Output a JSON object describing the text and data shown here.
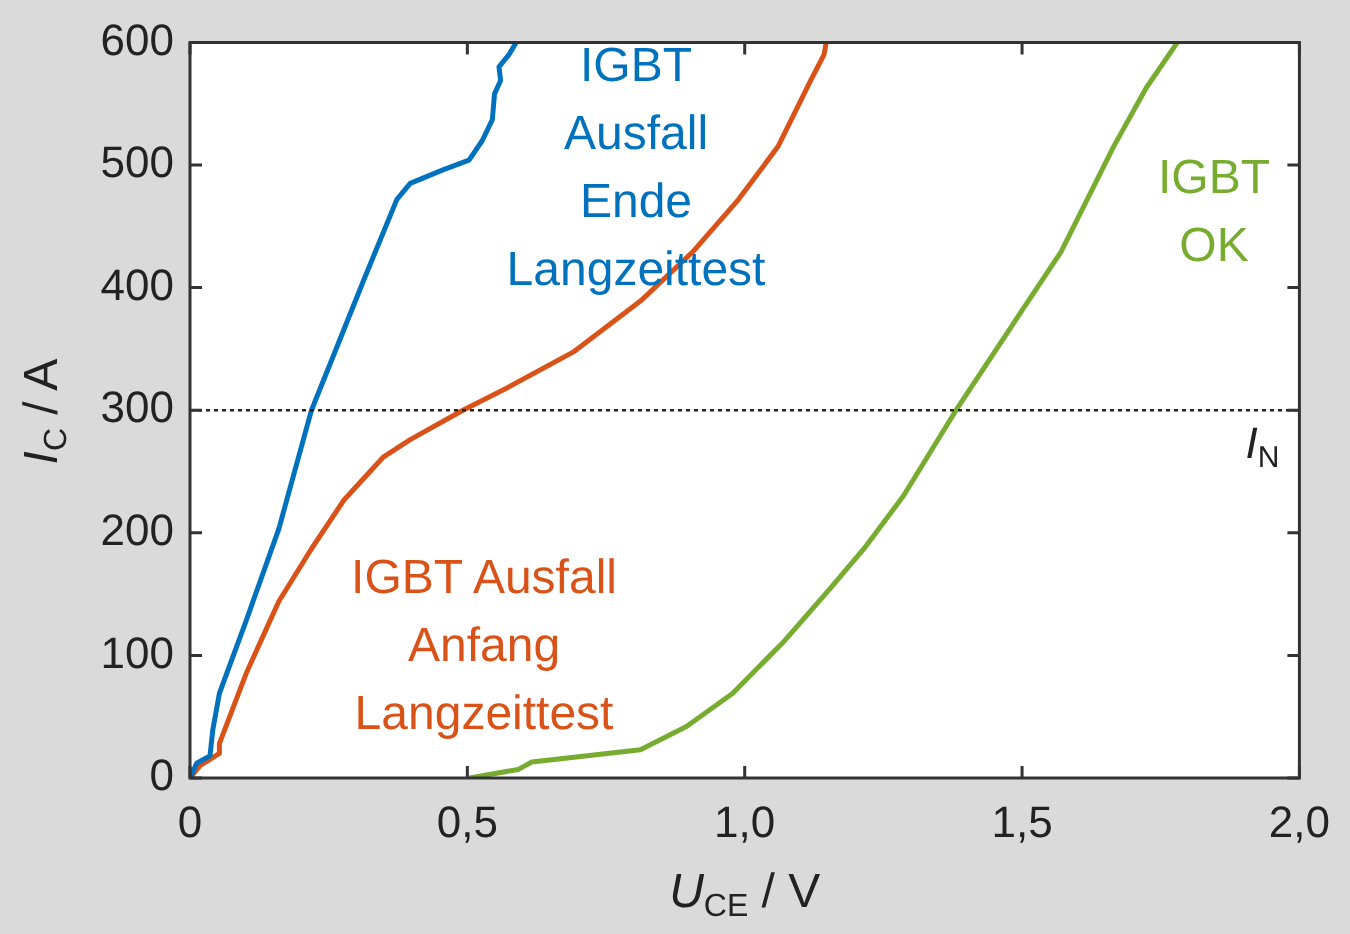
{
  "chart_data": {
    "type": "line",
    "xlabel": "U$_{CE}$ / V",
    "ylabel": "I$_{C}$ / A",
    "xlim": [
      0,
      2
    ],
    "ylim": [
      0,
      600
    ],
    "xticks": [
      0,
      {
        "value": 0.5,
        "label": "0,5"
      },
      {
        "value": 1,
        "label": "1,0"
      },
      {
        "value": 1.5,
        "label": "1,5"
      },
      {
        "value": 2,
        "label": "2,0"
      }
    ],
    "yticks": [
      0,
      100,
      200,
      300,
      400,
      500,
      600
    ],
    "grid": false,
    "legend": false,
    "marker": "none",
    "line_style": "solid",
    "ref_lines": [
      {
        "axis": "y",
        "value": 300,
        "label": "I$_{N}$",
        "line_style": "dotted",
        "color": "#222222"
      }
    ],
    "series": [
      {
        "name": "IGBT\nAusfall\nEnde\nLangzeittest",
        "color": "#0072bd",
        "x": [
          0,
          0.012,
          0.036,
          0.041,
          0.053,
          0.101,
          0.16,
          0.219,
          0.267,
          0.314,
          0.373,
          0.397,
          0.456,
          0.503,
          0.527,
          0.545,
          0.549,
          0.56,
          0.557,
          0.575,
          0.588
        ],
        "values": [
          0,
          12,
          18,
          39,
          69,
          128,
          203,
          300,
          354,
          407,
          472,
          485,
          496,
          504,
          520,
          537,
          558,
          569,
          580,
          590,
          600
        ]
      },
      {
        "name": "IGBT Ausfall\nAnfang\nLangzeittest",
        "color": "#d95319",
        "x": [
          0,
          0.018,
          0.053,
          0.053,
          0.101,
          0.16,
          0.219,
          0.278,
          0.349,
          0.397,
          0.492,
          0.575,
          0.693,
          0.812,
          0.906,
          0.989,
          1.06,
          1.119,
          1.143,
          1.147
        ],
        "values": [
          0,
          10,
          20,
          28,
          85,
          144,
          187,
          227,
          262,
          276,
          300,
          319,
          348,
          389,
          429,
          472,
          515,
          569,
          590,
          600
        ]
      },
      {
        "name": "IGBT\nOK",
        "color": "#77ac30",
        "x": [
          0.504,
          0.592,
          0.616,
          0.812,
          0.895,
          0.978,
          1.072,
          1.155,
          1.215,
          1.286,
          1.381,
          1.476,
          1.57,
          1.665,
          1.724,
          1.78
        ],
        "values": [
          0,
          7,
          13,
          23,
          42,
          69,
          112,
          155,
          187,
          230,
          300,
          365,
          429,
          515,
          563,
          600
        ]
      }
    ]
  }
}
